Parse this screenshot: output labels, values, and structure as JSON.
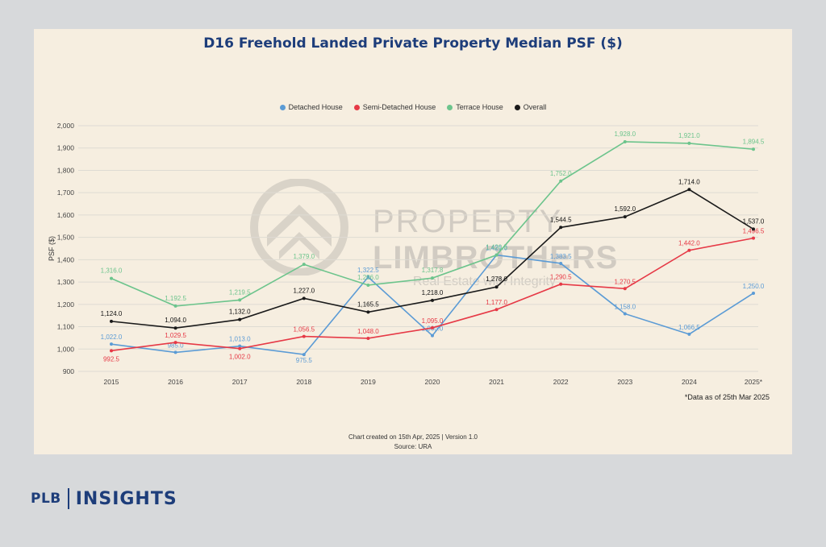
{
  "chart_data": {
    "type": "line",
    "title": "D16 Freehold Landed Private Property Median PSF ($)",
    "ylabel": "PSF ($)",
    "xlabel": "",
    "categories": [
      "2015",
      "2016",
      "2017",
      "2018",
      "2019",
      "2020",
      "2021",
      "2022",
      "2023",
      "2024",
      "2025*"
    ],
    "ylim": [
      900,
      2000
    ],
    "yticks": [
      900,
      1000,
      1100,
      1200,
      1300,
      1400,
      1500,
      1600,
      1700,
      1800,
      1900,
      2000
    ],
    "ytick_labels": [
      "900",
      "1,000",
      "1,100",
      "1,200",
      "1,300",
      "1,400",
      "1,500",
      "1,600",
      "1,700",
      "1,800",
      "1,900",
      "2,000"
    ],
    "grid": true,
    "legend_position": "top-center",
    "series": [
      {
        "name": "Detached House",
        "color": "#5b9bd5",
        "values": [
          1022.0,
          985.0,
          1013.0,
          975.5,
          1322.5,
          1060.0,
          1421.0,
          1383.5,
          1158.0,
          1066.5,
          1250.0
        ],
        "labels": [
          "1,022.0",
          "985.0",
          "1,013.0",
          "975.5",
          "1,322.5",
          "1,060.0",
          "1,421.0",
          "1,383.5",
          "1,158.0",
          "1,066.5",
          "1,250.0"
        ]
      },
      {
        "name": "Semi-Detached House",
        "color": "#e63946",
        "values": [
          992.5,
          1029.5,
          1002.0,
          1056.5,
          1048.0,
          1095.0,
          1177.0,
          1290.5,
          1270.5,
          1442.0,
          1496.5
        ],
        "labels": [
          "992.5",
          "1,029.5",
          "1,002.0",
          "1,056.5",
          "1,048.0",
          "1,095.0",
          "1,177.0",
          "1,290.5",
          "1,270.5",
          "1,442.0",
          "1,496.5"
        ]
      },
      {
        "name": "Terrace House",
        "color": "#6cc48c",
        "values": [
          1316.0,
          1192.5,
          1219.5,
          1379.0,
          1286.0,
          1317.8,
          1420.5,
          1752.0,
          1928.0,
          1921.0,
          1894.5
        ],
        "labels": [
          "1,316.0",
          "1,192.5",
          "1,219.5",
          "1,379.0",
          "1,286.0",
          "1,317.8",
          "1,420.5",
          "1,752.0",
          "1,928.0",
          "1,921.0",
          "1,894.5"
        ]
      },
      {
        "name": "Overall",
        "color": "#1a1a1a",
        "values": [
          1124.0,
          1094.0,
          1132.0,
          1227.0,
          1165.5,
          1218.0,
          1278.0,
          1544.5,
          1592.0,
          1714.0,
          1537.0
        ],
        "labels": [
          "1,124.0",
          "1,094.0",
          "1,132.0",
          "1,227.0",
          "1,165.5",
          "1,218.0",
          "1,278.0",
          "1,544.5",
          "1,592.0",
          "1,714.0",
          "1,537.0"
        ]
      }
    ],
    "annotations": {
      "footnote": "*Data as of 25th Mar 2025",
      "created": "Chart created on 15th Apr, 2025 | Version 1.0",
      "source": "Source: URA"
    }
  },
  "watermark": {
    "line1": "PROPERTY",
    "line2": "LIMBROTHERS",
    "line3": "Real Estate with Integrity"
  },
  "brand": {
    "left": "PLB",
    "right": "INSIGHTS"
  }
}
